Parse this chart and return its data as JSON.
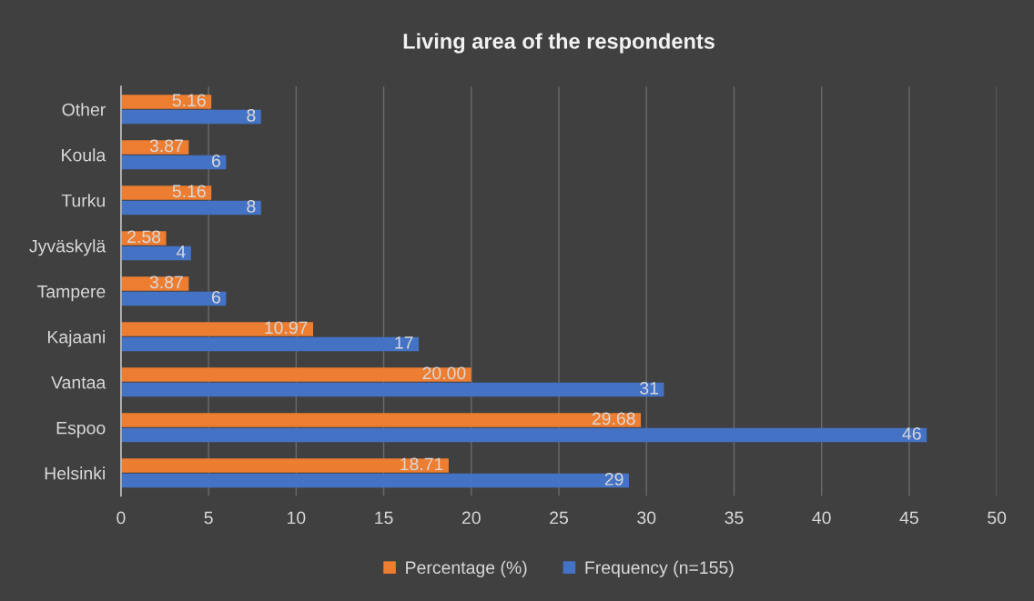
{
  "chart_data": {
    "type": "bar",
    "orientation": "horizontal",
    "title": "Living area of the respondents",
    "categories": [
      "Other",
      "Koula",
      "Turku",
      "Jyväskylä",
      "Tampere",
      "Kajaani",
      "Vantaa",
      "Espoo",
      "Helsinki"
    ],
    "series": [
      {
        "name": "Percentage (%)",
        "color": "#ed7d31",
        "values": [
          5.16,
          3.87,
          5.16,
          2.58,
          3.87,
          10.97,
          20.0,
          29.68,
          18.71
        ],
        "value_labels": [
          "5.16",
          "3.87",
          "5.16",
          "2.58",
          "3.87",
          "10.97",
          "20.00",
          "29.68",
          "18.71"
        ]
      },
      {
        "name": "Frequency (n=155)",
        "color": "#4472c4",
        "values": [
          8,
          6,
          8,
          4,
          6,
          17,
          31,
          46,
          29
        ],
        "value_labels": [
          "8",
          "6",
          "8",
          "4",
          "6",
          "17",
          "31",
          "46",
          "29"
        ]
      }
    ],
    "xlim": [
      0,
      50
    ],
    "xticks": [
      0,
      5,
      10,
      15,
      20,
      25,
      30,
      35,
      40,
      45,
      50
    ],
    "grid": "x",
    "legend": "bottom"
  }
}
